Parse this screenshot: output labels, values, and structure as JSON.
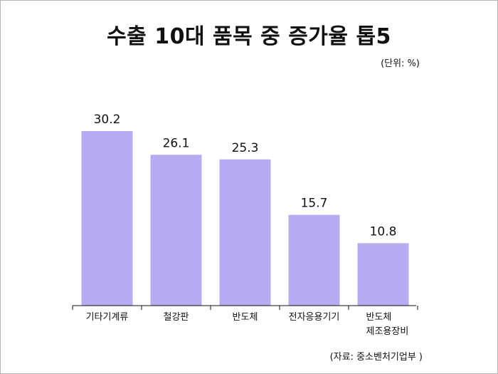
{
  "title": "수출 10대 품목 중 증가율 톱5",
  "unit_note": "(단위: %)",
  "source_note": "(자료: 중소벤처기업부 )",
  "colors": {
    "bar": "#b7acf2",
    "axis": "#111111",
    "frame": "#b5b5b5"
  },
  "chart_data": {
    "type": "bar",
    "title": "수출 10대 품목 중 증가율 톱5",
    "categories": [
      "기타기계류",
      "철강판",
      "반도체",
      "전자응용기기",
      "반도체\n제조용장비"
    ],
    "values": [
      30.2,
      26.1,
      25.3,
      15.7,
      10.8
    ],
    "value_labels": [
      "30.2",
      "26.1",
      "25.3",
      "15.7",
      "10.8"
    ],
    "xlabel": "",
    "ylabel": "",
    "ylim": [
      0,
      33
    ],
    "grid": false,
    "legend": "none"
  }
}
